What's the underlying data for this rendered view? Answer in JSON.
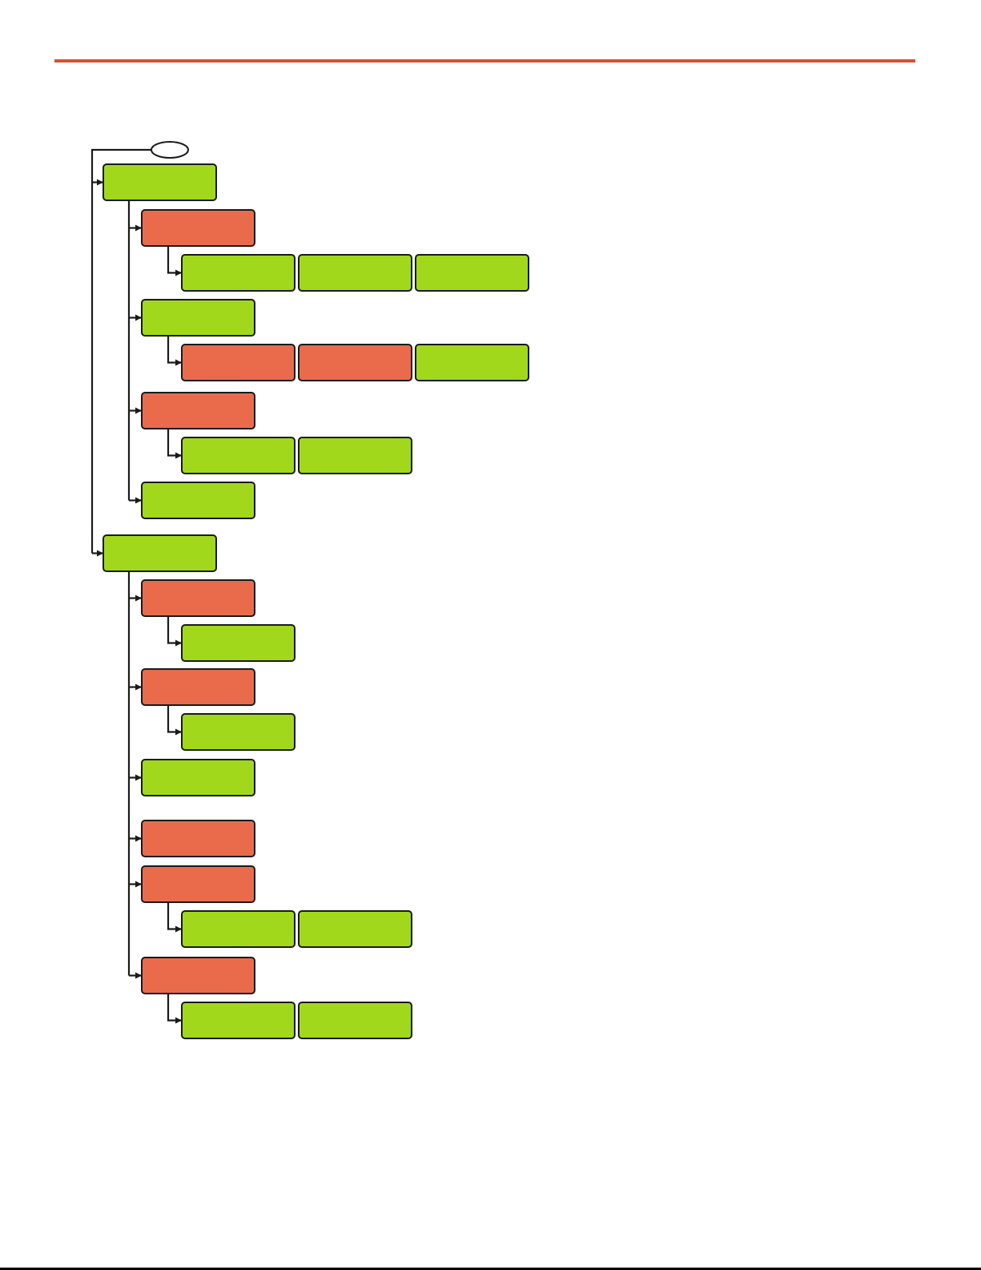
{
  "colors": {
    "accent_rule": "#d9502f",
    "ok": "#a2d81c",
    "issue": "#e96b4c",
    "stroke": "#1a1a1a"
  },
  "tree": {
    "root": {
      "shape": "ellipse",
      "label": ""
    },
    "groups": [
      {
        "status": "ok",
        "label": "",
        "children": [
          {
            "status": "issue",
            "label": "",
            "items": [
              {
                "status": "ok",
                "label": ""
              },
              {
                "status": "ok",
                "label": ""
              },
              {
                "status": "ok",
                "label": ""
              }
            ]
          },
          {
            "status": "ok",
            "label": "",
            "items": [
              {
                "status": "issue",
                "label": ""
              },
              {
                "status": "issue",
                "label": ""
              },
              {
                "status": "ok",
                "label": ""
              }
            ]
          },
          {
            "status": "issue",
            "label": "",
            "items": [
              {
                "status": "ok",
                "label": ""
              },
              {
                "status": "ok",
                "label": ""
              }
            ]
          },
          {
            "status": "ok",
            "label": "",
            "items": []
          }
        ]
      },
      {
        "status": "ok",
        "label": "",
        "children": [
          {
            "status": "issue",
            "label": "",
            "items": [
              {
                "status": "ok",
                "label": ""
              }
            ]
          },
          {
            "status": "issue",
            "label": "",
            "items": [
              {
                "status": "ok",
                "label": ""
              }
            ]
          },
          {
            "status": "ok",
            "label": "",
            "items": []
          },
          {
            "status": "issue",
            "label": "",
            "items": []
          },
          {
            "status": "issue",
            "label": "",
            "items": [
              {
                "status": "ok",
                "label": ""
              },
              {
                "status": "ok",
                "label": ""
              }
            ]
          },
          {
            "status": "issue",
            "label": "",
            "items": [
              {
                "status": "ok",
                "label": ""
              },
              {
                "status": "ok",
                "label": ""
              }
            ]
          }
        ]
      }
    ]
  }
}
